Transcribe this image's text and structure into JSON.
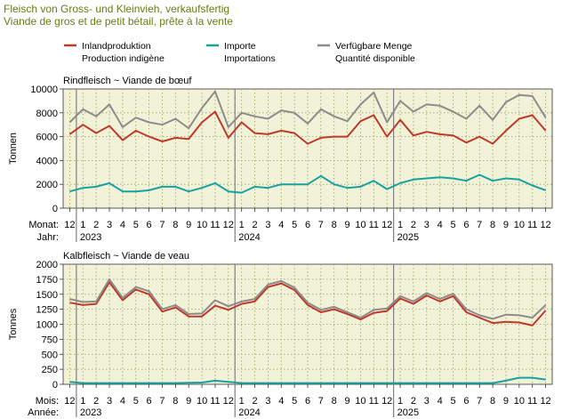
{
  "header": {
    "title_de": "Fleisch von Gross- und Kleinvieh, verkaufsfertig",
    "title_fr": "Viande de gros et de petit bétail, prête à la vente"
  },
  "legend": [
    {
      "de": "Inlandproduktion",
      "fr": "Production indigène",
      "color": "#c0392b"
    },
    {
      "de": "Importe",
      "fr": "Importations",
      "color": "#17a2a2"
    },
    {
      "de": "Verfügbare Menge",
      "fr": "Quantité disponible",
      "color": "#8c8c8c"
    }
  ],
  "colors": {
    "plot_background": "#f2f2d8",
    "grid": "#9aa35a",
    "year_divider": "#808080",
    "title": "#6b7a14"
  },
  "chart_data": [
    {
      "type": "line",
      "subtitle": "Rindfleisch   ~   Viande de bœuf",
      "ylabel": "Tonnen",
      "ylim": [
        0,
        10000
      ],
      "yticks": [
        0,
        2000,
        4000,
        6000,
        8000,
        10000
      ],
      "grid": true,
      "x_axis_label_month": "Monat:",
      "x_axis_label_year": "Jahr:",
      "x": [
        "12",
        "1",
        "2",
        "3",
        "4",
        "5",
        "6",
        "7",
        "8",
        "9",
        "10",
        "11",
        "12",
        "1",
        "2",
        "3",
        "4",
        "5",
        "6",
        "7",
        "8",
        "9",
        "10",
        "11",
        "12",
        "1",
        "2",
        "3",
        "4",
        "5",
        "6",
        "7",
        "8",
        "9",
        "10",
        "11",
        "12"
      ],
      "years": [
        {
          "label": "2023",
          "index": 1
        },
        {
          "label": "2024",
          "index": 13
        },
        {
          "label": "2025",
          "index": 25
        }
      ],
      "series": [
        {
          "name": "Inlandproduktion",
          "color": "#c0392b",
          "values": [
            6200,
            7000,
            6300,
            6900,
            5700,
            6500,
            6000,
            5600,
            5900,
            5800,
            7200,
            8100,
            5900,
            7200,
            6300,
            6200,
            6500,
            6300,
            5400,
            5900,
            6000,
            6000,
            7300,
            7800,
            6000,
            7400,
            6100,
            6400,
            6200,
            6100,
            5500,
            6000,
            5400,
            6500,
            7500,
            7800,
            6500
          ]
        },
        {
          "name": "Importe",
          "color": "#17a2a2",
          "values": [
            1400,
            1700,
            1800,
            2100,
            1400,
            1400,
            1500,
            1800,
            1800,
            1400,
            1700,
            2100,
            1400,
            1300,
            1800,
            1700,
            2000,
            2000,
            2000,
            2700,
            2000,
            1700,
            1800,
            2300,
            1600,
            2100,
            2400,
            2500,
            2600,
            2500,
            2300,
            2800,
            2300,
            2500,
            2400,
            1900,
            1500
          ]
        },
        {
          "name": "Verfügbare Menge",
          "color": "#8c8c8c",
          "values": [
            7200,
            8300,
            7700,
            8700,
            6800,
            7600,
            7200,
            7000,
            7500,
            6700,
            8400,
            9800,
            6800,
            8000,
            7700,
            7500,
            8200,
            8000,
            7100,
            8300,
            7700,
            7300,
            8700,
            9700,
            7200,
            9000,
            8100,
            8700,
            8600,
            8100,
            7500,
            8600,
            7400,
            8900,
            9500,
            9400,
            7600
          ]
        }
      ]
    },
    {
      "type": "line",
      "subtitle": "Kalbfleisch   ~   Viande de veau",
      "ylabel": "Tonnes",
      "ylim": [
        0,
        2000
      ],
      "yticks": [
        0,
        250,
        500,
        750,
        1000,
        1250,
        1500,
        1750,
        2000
      ],
      "grid": true,
      "x_axis_label_month": "Mois:",
      "x_axis_label_year": "Année:",
      "x": [
        "12",
        "1",
        "2",
        "3",
        "4",
        "5",
        "6",
        "7",
        "8",
        "9",
        "10",
        "11",
        "12",
        "1",
        "2",
        "3",
        "4",
        "5",
        "6",
        "7",
        "8",
        "9",
        "10",
        "11",
        "12",
        "1",
        "2",
        "3",
        "4",
        "5",
        "6",
        "7",
        "8",
        "9",
        "10",
        "11",
        "12"
      ],
      "years": [
        {
          "label": "2023",
          "index": 1
        },
        {
          "label": "2024",
          "index": 13
        },
        {
          "label": "2025",
          "index": 25
        }
      ],
      "series": [
        {
          "name": "Inlandproduktion",
          "color": "#c0392b",
          "values": [
            1360,
            1320,
            1340,
            1700,
            1400,
            1580,
            1500,
            1210,
            1280,
            1130,
            1130,
            1310,
            1240,
            1340,
            1380,
            1620,
            1680,
            1570,
            1320,
            1200,
            1250,
            1170,
            1080,
            1190,
            1220,
            1430,
            1340,
            1480,
            1380,
            1470,
            1200,
            1110,
            1020,
            1040,
            1030,
            980,
            1230
          ]
        },
        {
          "name": "Importe",
          "color": "#17a2a2",
          "values": [
            40,
            20,
            20,
            20,
            20,
            20,
            20,
            20,
            20,
            25,
            30,
            60,
            40,
            20,
            20,
            20,
            20,
            20,
            20,
            20,
            20,
            20,
            20,
            20,
            20,
            20,
            20,
            20,
            20,
            20,
            20,
            20,
            20,
            60,
            110,
            110,
            80
          ]
        },
        {
          "name": "Verfügbare Menge",
          "color": "#8c8c8c",
          "values": [
            1420,
            1370,
            1380,
            1750,
            1440,
            1620,
            1550,
            1250,
            1320,
            1170,
            1180,
            1400,
            1300,
            1380,
            1420,
            1660,
            1720,
            1610,
            1360,
            1240,
            1290,
            1200,
            1110,
            1240,
            1260,
            1470,
            1380,
            1520,
            1420,
            1510,
            1250,
            1150,
            1090,
            1160,
            1150,
            1110,
            1320
          ]
        }
      ]
    }
  ]
}
